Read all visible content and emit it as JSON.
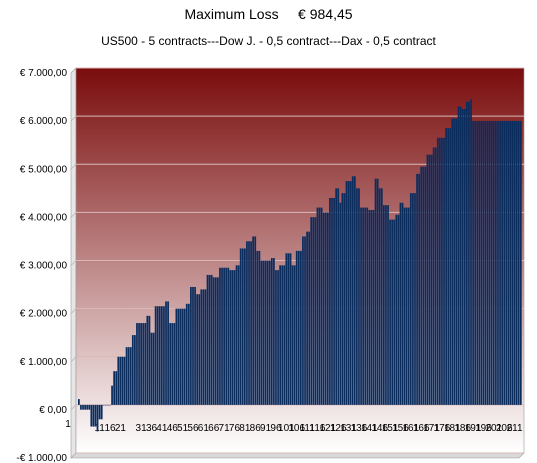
{
  "header": {
    "title_label": "Maximum Loss",
    "title_value": "€ 984,45",
    "subtitle": "US500 - 5 contracts---Dow J. - 0,5 contract---Dax - 0,5 contract"
  },
  "colors": {
    "bar": "#0b2d5e",
    "background_top": "#7a0c0c",
    "background_bottom": "#ffffff",
    "gridline": "#d9b8b8"
  },
  "chart_data": {
    "type": "bar",
    "title": "Maximum Loss € 984,45",
    "subtitle": "US500 - 5 contracts---Dow J. - 0,5 contract---Dax - 0,5 contract",
    "xlabel": "",
    "ylabel": "",
    "ylim": [
      -1000,
      7000
    ],
    "y_ticks": [
      "-€ 1.000,00",
      "€ 0,00",
      "€ 1.000,00",
      "€ 2.000,00",
      "€ 3.000,00",
      "€ 4.000,00",
      "€ 5.000,00",
      "€ 6.000,00",
      "€ 7.000,00"
    ],
    "x_tick_labels": [
      "1",
      "11",
      "16",
      "21",
      "31",
      "36",
      "41",
      "46",
      "51",
      "56",
      "61",
      "66",
      "71",
      "76",
      "81",
      "86",
      "91",
      "96",
      "101",
      "106",
      "111",
      "116",
      "121",
      "126",
      "131",
      "136",
      "141",
      "146",
      "151",
      "156",
      "161",
      "166",
      "171",
      "176",
      "181",
      "186",
      "191",
      "196",
      "201",
      "206",
      "211"
    ],
    "grid": true,
    "legend": "none",
    "x_range": [
      1,
      214
    ],
    "values_by_segment": [
      [
        1,
        1,
        120
      ],
      [
        2,
        6,
        -100
      ],
      [
        7,
        9,
        -450
      ],
      [
        10,
        10,
        -550
      ],
      [
        11,
        12,
        -300
      ],
      [
        13,
        16,
        0
      ],
      [
        17,
        17,
        400
      ],
      [
        18,
        19,
        700
      ],
      [
        20,
        23,
        1000
      ],
      [
        24,
        26,
        1200
      ],
      [
        27,
        28,
        1450
      ],
      [
        29,
        33,
        1700
      ],
      [
        34,
        35,
        1850
      ],
      [
        36,
        37,
        1500
      ],
      [
        38,
        42,
        2050
      ],
      [
        43,
        44,
        2150
      ],
      [
        45,
        47,
        1700
      ],
      [
        48,
        52,
        2000
      ],
      [
        53,
        54,
        2100
      ],
      [
        55,
        57,
        2450
      ],
      [
        58,
        59,
        2300
      ],
      [
        60,
        62,
        2400
      ],
      [
        63,
        65,
        2700
      ],
      [
        66,
        68,
        2650
      ],
      [
        69,
        73,
        2850
      ],
      [
        74,
        76,
        2800
      ],
      [
        77,
        78,
        2900
      ],
      [
        79,
        81,
        3250
      ],
      [
        82,
        84,
        3400
      ],
      [
        85,
        86,
        3500
      ],
      [
        87,
        88,
        3200
      ],
      [
        89,
        93,
        3000
      ],
      [
        94,
        95,
        3050
      ],
      [
        96,
        97,
        2800
      ],
      [
        98,
        100,
        2900
      ],
      [
        101,
        103,
        3150
      ],
      [
        104,
        105,
        2900
      ],
      [
        106,
        108,
        3200
      ],
      [
        109,
        110,
        3500
      ],
      [
        111,
        112,
        3600
      ],
      [
        113,
        115,
        3900
      ],
      [
        116,
        118,
        4100
      ],
      [
        119,
        121,
        4000
      ],
      [
        122,
        124,
        4300
      ],
      [
        125,
        126,
        4500
      ],
      [
        127,
        127,
        4200
      ],
      [
        128,
        129,
        4400
      ],
      [
        130,
        132,
        4650
      ],
      [
        133,
        134,
        4750
      ],
      [
        135,
        136,
        4500
      ],
      [
        137,
        140,
        4100
      ],
      [
        141,
        143,
        4050
      ],
      [
        144,
        145,
        4700
      ],
      [
        146,
        147,
        4500
      ],
      [
        148,
        150,
        4150
      ],
      [
        151,
        153,
        3850
      ],
      [
        154,
        155,
        3950
      ],
      [
        156,
        157,
        4200
      ],
      [
        158,
        160,
        4100
      ],
      [
        161,
        163,
        4400
      ],
      [
        164,
        165,
        4800
      ],
      [
        166,
        168,
        4950
      ],
      [
        169,
        171,
        5200
      ],
      [
        172,
        173,
        5350
      ],
      [
        174,
        177,
        5550
      ],
      [
        178,
        180,
        5750
      ],
      [
        181,
        183,
        5950
      ],
      [
        184,
        185,
        6200
      ],
      [
        186,
        187,
        6150
      ],
      [
        188,
        189,
        6300
      ],
      [
        190,
        190,
        6350
      ],
      [
        191,
        191,
        5900
      ]
    ]
  }
}
